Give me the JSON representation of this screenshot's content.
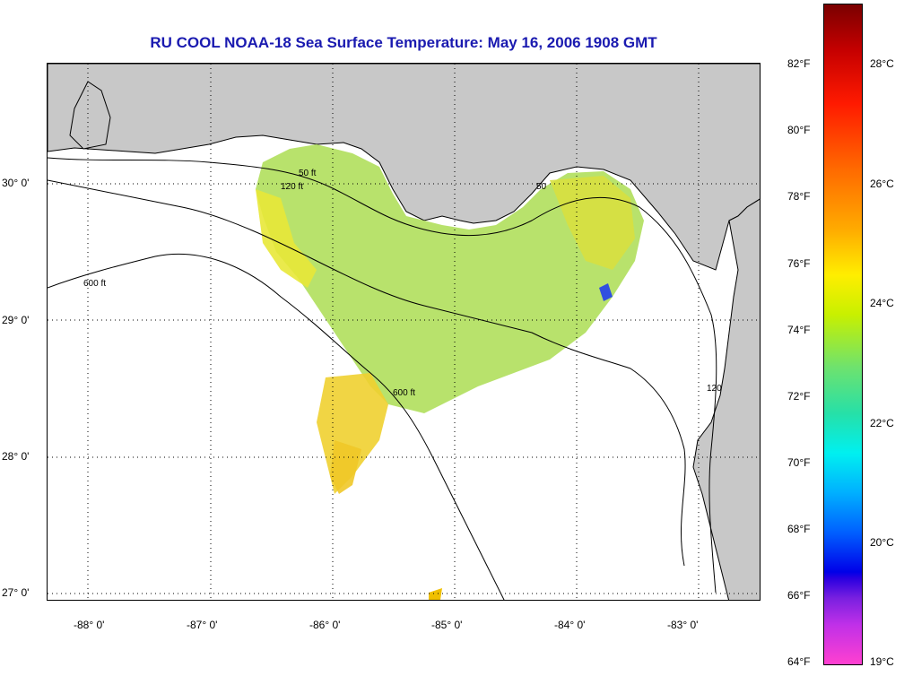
{
  "title": "RU COOL  NOAA-18  Sea Surface Temperature:  May 16, 2006 1908 GMT",
  "longitude_ticks": [
    "-88° 0'",
    "-87° 0'",
    "-86° 0'",
    "-85° 0'",
    "-84° 0'",
    "-83° 0'"
  ],
  "latitude_ticks": [
    "30° 0'",
    "29° 0'",
    "28° 0'",
    "27° 0'"
  ],
  "contour_labels": [
    "50 ft",
    "120 ft",
    "600 ft",
    "50",
    "120"
  ],
  "colorbar": {
    "fahrenheit": [
      "82°F",
      "80°F",
      "78°F",
      "76°F",
      "74°F",
      "72°F",
      "70°F",
      "68°F",
      "66°F",
      "64°F"
    ],
    "celsius": [
      "28°C",
      "26°C",
      "24°C",
      "22°C",
      "20°C",
      "19°C"
    ]
  },
  "colors": {
    "title": "#1a1ab0",
    "land": "#c8c8c8",
    "ocean_nodata": "#ffffff",
    "sst_warm": "#f0d000",
    "sst_mid": "#c8e840",
    "sst_cool": "#9ae06a"
  }
}
